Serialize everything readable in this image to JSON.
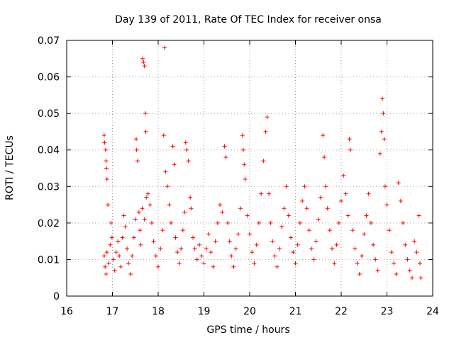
{
  "chart_data": {
    "type": "scatter",
    "title": "Day 139 of 2011, Rate Of TEC Index for receiver onsa",
    "xlabel": "GPS time / hours",
    "ylabel": "ROTI / TECUs",
    "xlim": [
      16,
      24
    ],
    "ylim": [
      0,
      0.07
    ],
    "x_ticks": [
      "16",
      "17",
      "18",
      "19",
      "20",
      "21",
      "22",
      "23",
      "24"
    ],
    "y_ticks": [
      "0",
      "0.01",
      "0.02",
      "0.03",
      "0.04",
      "0.05",
      "0.06",
      "0.07"
    ],
    "grid": true,
    "marker": "+",
    "color": "#ff0000",
    "series": [
      {
        "points": [
          [
            16.82,
            0.044
          ],
          [
            16.83,
            0.042
          ],
          [
            16.85,
            0.04
          ],
          [
            16.86,
            0.037
          ],
          [
            16.87,
            0.035
          ],
          [
            16.88,
            0.032
          ],
          [
            16.9,
            0.025
          ],
          [
            16.82,
            0.011
          ],
          [
            16.84,
            0.008
          ],
          [
            16.86,
            0.006
          ],
          [
            16.88,
            0.012
          ],
          [
            16.92,
            0.009
          ],
          [
            16.95,
            0.014
          ],
          [
            16.97,
            0.02
          ],
          [
            16.99,
            0.016
          ],
          [
            17.02,
            0.01
          ],
          [
            17.05,
            0.007
          ],
          [
            17.08,
            0.012
          ],
          [
            17.12,
            0.015
          ],
          [
            17.15,
            0.011
          ],
          [
            17.18,
            0.008
          ],
          [
            17.22,
            0.016
          ],
          [
            17.25,
            0.022
          ],
          [
            17.28,
            0.019
          ],
          [
            17.32,
            0.013
          ],
          [
            17.35,
            0.009
          ],
          [
            17.4,
            0.006
          ],
          [
            17.43,
            0.011
          ],
          [
            17.47,
            0.016
          ],
          [
            17.5,
            0.021
          ],
          [
            17.52,
            0.043
          ],
          [
            17.53,
            0.04
          ],
          [
            17.55,
            0.037
          ],
          [
            17.58,
            0.023
          ],
          [
            17.6,
            0.018
          ],
          [
            17.62,
            0.014
          ],
          [
            17.66,
            0.065
          ],
          [
            17.68,
            0.064
          ],
          [
            17.7,
            0.063
          ],
          [
            17.72,
            0.05
          ],
          [
            17.73,
            0.045
          ],
          [
            17.65,
            0.024
          ],
          [
            17.7,
            0.021
          ],
          [
            17.74,
            0.027
          ],
          [
            17.78,
            0.028
          ],
          [
            17.82,
            0.025
          ],
          [
            17.86,
            0.02
          ],
          [
            17.9,
            0.015
          ],
          [
            17.95,
            0.011
          ],
          [
            18.0,
            0.008
          ],
          [
            18.05,
            0.013
          ],
          [
            18.1,
            0.018
          ],
          [
            18.12,
            0.044
          ],
          [
            18.14,
            0.068
          ],
          [
            18.16,
            0.034
          ],
          [
            18.2,
            0.03
          ],
          [
            18.24,
            0.025
          ],
          [
            18.28,
            0.02
          ],
          [
            18.32,
            0.041
          ],
          [
            18.35,
            0.036
          ],
          [
            18.38,
            0.016
          ],
          [
            18.42,
            0.012
          ],
          [
            18.46,
            0.009
          ],
          [
            18.5,
            0.013
          ],
          [
            18.54,
            0.018
          ],
          [
            18.58,
            0.023
          ],
          [
            18.6,
            0.042
          ],
          [
            18.62,
            0.04
          ],
          [
            18.66,
            0.037
          ],
          [
            18.7,
            0.027
          ],
          [
            18.72,
            0.024
          ],
          [
            18.76,
            0.016
          ],
          [
            18.8,
            0.013
          ],
          [
            18.85,
            0.01
          ],
          [
            18.9,
            0.014
          ],
          [
            18.95,
            0.011
          ],
          [
            19.0,
            0.009
          ],
          [
            19.05,
            0.013
          ],
          [
            19.1,
            0.017
          ],
          [
            19.15,
            0.012
          ],
          [
            19.2,
            0.008
          ],
          [
            19.25,
            0.015
          ],
          [
            19.3,
            0.02
          ],
          [
            19.35,
            0.025
          ],
          [
            19.4,
            0.023
          ],
          [
            19.45,
            0.041
          ],
          [
            19.48,
            0.038
          ],
          [
            19.52,
            0.02
          ],
          [
            19.56,
            0.015
          ],
          [
            19.6,
            0.011
          ],
          [
            19.65,
            0.008
          ],
          [
            19.7,
            0.013
          ],
          [
            19.75,
            0.017
          ],
          [
            19.8,
            0.024
          ],
          [
            19.84,
            0.044
          ],
          [
            19.86,
            0.04
          ],
          [
            19.88,
            0.036
          ],
          [
            19.9,
            0.032
          ],
          [
            19.95,
            0.022
          ],
          [
            20.0,
            0.017
          ],
          [
            20.05,
            0.012
          ],
          [
            20.1,
            0.009
          ],
          [
            20.15,
            0.014
          ],
          [
            20.2,
            0.02
          ],
          [
            20.25,
            0.028
          ],
          [
            20.3,
            0.037
          ],
          [
            20.35,
            0.045
          ],
          [
            20.38,
            0.049
          ],
          [
            20.42,
            0.028
          ],
          [
            20.46,
            0.02
          ],
          [
            20.5,
            0.015
          ],
          [
            20.55,
            0.011
          ],
          [
            20.6,
            0.008
          ],
          [
            20.65,
            0.013
          ],
          [
            20.7,
            0.019
          ],
          [
            20.75,
            0.024
          ],
          [
            20.8,
            0.03
          ],
          [
            20.85,
            0.022
          ],
          [
            20.9,
            0.016
          ],
          [
            20.95,
            0.012
          ],
          [
            21.0,
            0.009
          ],
          [
            21.05,
            0.014
          ],
          [
            21.1,
            0.02
          ],
          [
            21.15,
            0.026
          ],
          [
            21.2,
            0.03
          ],
          [
            21.25,
            0.024
          ],
          [
            21.3,
            0.018
          ],
          [
            21.35,
            0.013
          ],
          [
            21.4,
            0.01
          ],
          [
            21.45,
            0.015
          ],
          [
            21.5,
            0.021
          ],
          [
            21.55,
            0.027
          ],
          [
            21.6,
            0.044
          ],
          [
            21.63,
            0.038
          ],
          [
            21.66,
            0.03
          ],
          [
            21.7,
            0.024
          ],
          [
            21.75,
            0.018
          ],
          [
            21.8,
            0.013
          ],
          [
            21.85,
            0.009
          ],
          [
            21.9,
            0.014
          ],
          [
            21.95,
            0.02
          ],
          [
            22.0,
            0.026
          ],
          [
            22.05,
            0.033
          ],
          [
            22.1,
            0.028
          ],
          [
            22.15,
            0.022
          ],
          [
            22.18,
            0.043
          ],
          [
            22.2,
            0.04
          ],
          [
            22.25,
            0.018
          ],
          [
            22.3,
            0.013
          ],
          [
            22.35,
            0.009
          ],
          [
            22.4,
            0.006
          ],
          [
            22.45,
            0.011
          ],
          [
            22.5,
            0.017
          ],
          [
            22.55,
            0.022
          ],
          [
            22.6,
            0.028
          ],
          [
            22.65,
            0.02
          ],
          [
            22.7,
            0.014
          ],
          [
            22.75,
            0.01
          ],
          [
            22.8,
            0.007
          ],
          [
            22.85,
            0.039
          ],
          [
            22.88,
            0.045
          ],
          [
            22.9,
            0.054
          ],
          [
            22.92,
            0.05
          ],
          [
            22.94,
            0.043
          ],
          [
            22.96,
            0.03
          ],
          [
            23.0,
            0.025
          ],
          [
            23.05,
            0.018
          ],
          [
            23.1,
            0.012
          ],
          [
            23.15,
            0.009
          ],
          [
            23.2,
            0.006
          ],
          [
            23.25,
            0.031
          ],
          [
            23.3,
            0.026
          ],
          [
            23.35,
            0.02
          ],
          [
            23.4,
            0.014
          ],
          [
            23.45,
            0.01
          ],
          [
            23.5,
            0.007
          ],
          [
            23.55,
            0.005
          ],
          [
            23.6,
            0.015
          ],
          [
            23.65,
            0.012
          ],
          [
            23.7,
            0.022
          ],
          [
            23.72,
            0.009
          ],
          [
            23.74,
            0.005
          ]
        ]
      }
    ]
  }
}
